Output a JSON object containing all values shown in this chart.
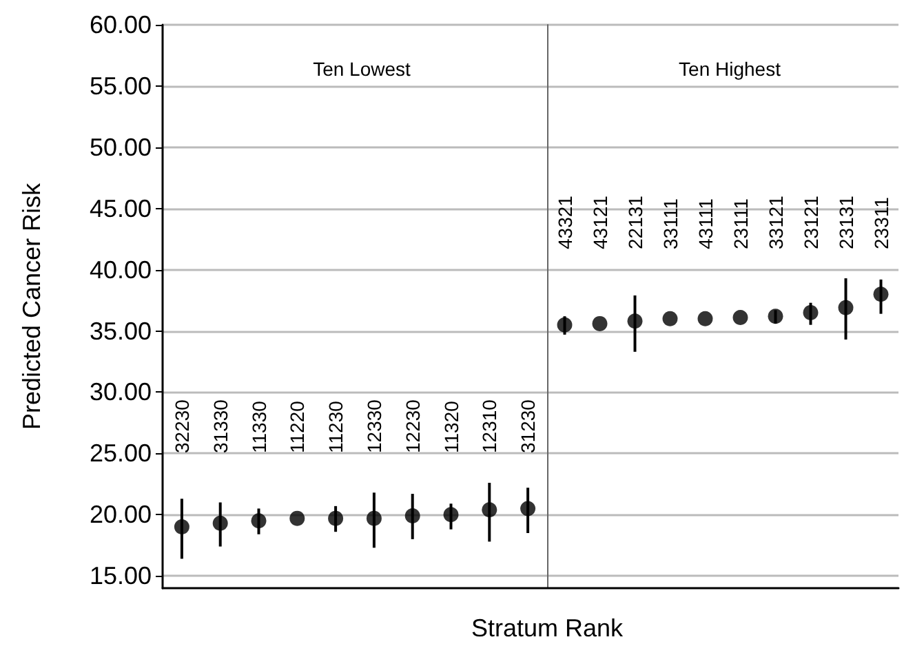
{
  "chart_data": [
    {
      "type": "scatter",
      "title": "Ten Lowest",
      "ylabel": "Predicted Cancer Risk",
      "xlabel": "Stratum Rank",
      "categories": [
        "32230",
        "31330",
        "11330",
        "11220",
        "11230",
        "12330",
        "12230",
        "11320",
        "12310",
        "31230"
      ],
      "values": [
        19.0,
        19.3,
        19.5,
        19.7,
        19.7,
        19.7,
        19.9,
        20.0,
        20.4,
        20.5
      ],
      "errors": [
        [
          16.4,
          21.3
        ],
        [
          17.4,
          21.0
        ],
        [
          18.4,
          20.5
        ],
        null,
        [
          18.6,
          20.7
        ],
        [
          17.3,
          21.8
        ],
        [
          18.0,
          21.7
        ],
        [
          18.8,
          20.9
        ],
        [
          17.8,
          22.6
        ],
        [
          18.5,
          22.2
        ]
      ],
      "color": "#000000",
      "marker": "circle",
      "grid": "y",
      "ylim": [
        14,
        60
      ],
      "yticks": [
        {
          "value": 15,
          "label": "15.00"
        },
        {
          "value": 20,
          "label": "20.00"
        },
        {
          "value": 25,
          "label": "25.00"
        },
        {
          "value": 30,
          "label": "30.00"
        },
        {
          "value": 35,
          "label": "35.00"
        },
        {
          "value": 40,
          "label": "40.00"
        },
        {
          "value": 45,
          "label": "45.00"
        },
        {
          "value": 50,
          "label": "50.00"
        },
        {
          "value": 55,
          "label": "55.00"
        },
        {
          "value": 60,
          "label": "60.00"
        }
      ]
    },
    {
      "type": "scatter",
      "title": "Ten Highest",
      "categories": [
        "43321",
        "43121",
        "22131",
        "33111",
        "43111",
        "23111",
        "33121",
        "23121",
        "23131",
        "23311"
      ],
      "values": [
        35.5,
        35.6,
        35.8,
        36.0,
        36.0,
        36.1,
        36.2,
        36.5,
        36.9,
        38.0
      ],
      "errors": [
        [
          34.7,
          36.2
        ],
        null,
        [
          33.3,
          37.9
        ],
        null,
        null,
        null,
        [
          35.6,
          36.7
        ],
        [
          35.5,
          37.3
        ],
        [
          34.3,
          39.3
        ],
        [
          36.4,
          39.2
        ]
      ],
      "color": "#000000",
      "marker": "circle",
      "grid": "y",
      "tick_labels": "x",
      "ylim": [
        14,
        60
      ],
      "yticks": [
        15,
        20,
        25,
        30,
        35,
        40,
        45,
        50,
        55,
        60
      ]
    }
  ]
}
